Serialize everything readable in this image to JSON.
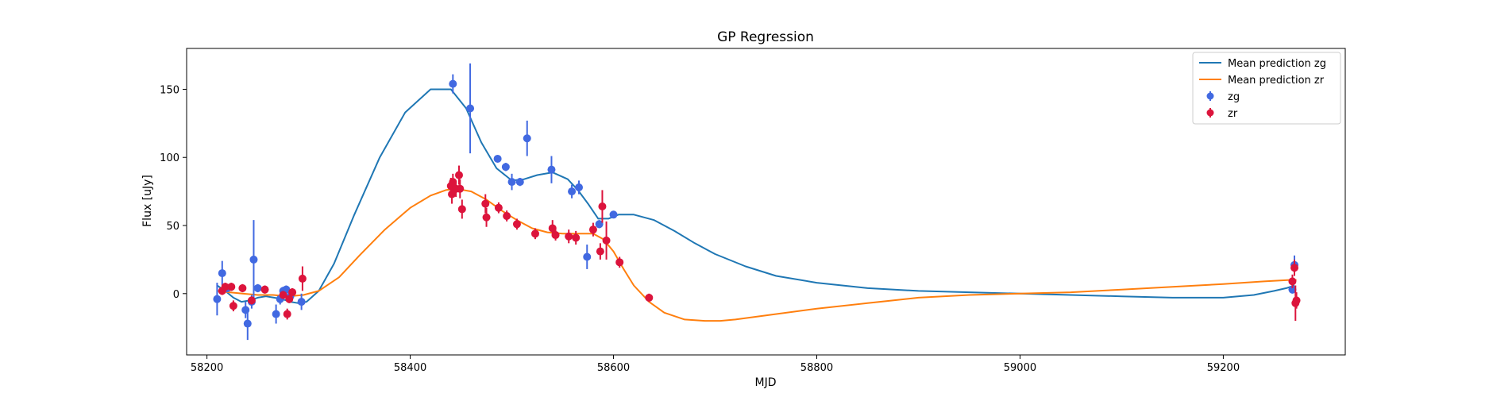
{
  "chart_data": {
    "type": "scatter",
    "title": "GP Regression",
    "xlabel": "MJD",
    "ylabel": "Flux [uJy]",
    "xlim": [
      58180,
      59320
    ],
    "ylim": [
      -45,
      180
    ],
    "xticks": [
      58200,
      58400,
      58600,
      58800,
      59000,
      59200
    ],
    "yticks": [
      0,
      50,
      100,
      150
    ],
    "grid": false,
    "legend_position": "top-right",
    "series": [
      {
        "name": "Mean prediction zg",
        "kind": "line",
        "color": "#1f77b4",
        "x": [
          58210,
          58218,
          58226,
          58234,
          58242,
          58250,
          58258,
          58266,
          58274,
          58282,
          58290,
          58298,
          58310,
          58325,
          58345,
          58370,
          58395,
          58420,
          58440,
          58455,
          58470,
          58485,
          58500,
          58512,
          58525,
          58540,
          58555,
          58565,
          58575,
          58585,
          58595,
          58605,
          58620,
          58640,
          58660,
          58680,
          58700,
          58730,
          58760,
          58800,
          58850,
          58900,
          58950,
          59000,
          59050,
          59100,
          59150,
          59200,
          59230,
          59250,
          59262,
          59270
        ],
        "y": [
          6,
          2,
          -3,
          -6,
          -5,
          -3,
          -2,
          -3,
          -4,
          -6,
          -7,
          -6,
          2,
          22,
          58,
          100,
          133,
          150,
          150,
          136,
          111,
          92,
          83,
          84,
          87,
          89,
          84,
          76,
          66,
          55,
          55,
          58,
          58,
          54,
          46,
          37,
          29,
          20,
          13,
          8,
          4,
          2,
          1,
          0,
          -1,
          -2,
          -3,
          -3,
          -1,
          2,
          4,
          6
        ]
      },
      {
        "name": "Mean prediction zr",
        "kind": "line",
        "color": "#ff7f0e",
        "x": [
          58210,
          58222,
          58235,
          58250,
          58265,
          58280,
          58295,
          58310,
          58330,
          58350,
          58375,
          58400,
          58420,
          58435,
          58445,
          58460,
          58475,
          58490,
          58505,
          58520,
          58535,
          58550,
          58565,
          58580,
          58590,
          58600,
          58610,
          58620,
          58635,
          58650,
          58670,
          58690,
          58705,
          58720,
          58750,
          58800,
          58850,
          58900,
          58950,
          59000,
          59050,
          59100,
          59150,
          59200,
          59240,
          59265,
          59272
        ],
        "y": [
          2,
          1,
          0,
          -1,
          -1,
          -2,
          -1,
          2,
          12,
          28,
          47,
          63,
          72,
          76,
          77,
          75,
          69,
          61,
          54,
          48,
          45,
          44,
          44,
          44,
          40,
          31,
          18,
          6,
          -6,
          -14,
          -19,
          -20,
          -20,
          -19,
          -16,
          -11,
          -7,
          -3,
          -1,
          0,
          1,
          3,
          5,
          7,
          9,
          10,
          10
        ]
      },
      {
        "name": "zg",
        "kind": "errorbar",
        "color": "#4169e1",
        "x": [
          58210,
          58215,
          58220,
          58238,
          58240,
          58244,
          58246,
          58250,
          58268,
          58272,
          58275,
          58278,
          58282,
          58293,
          58442,
          58459,
          58486,
          58494,
          58500,
          58508,
          58515,
          58539,
          58559,
          58566,
          58574,
          58586,
          58600,
          59268,
          59270
        ],
        "y": [
          -4,
          15,
          4,
          -12,
          -22,
          -6,
          25,
          4,
          -15,
          -4,
          2,
          3,
          -2,
          -6,
          154,
          136,
          99,
          93,
          82,
          82,
          114,
          91,
          75,
          78,
          27,
          51,
          58,
          3,
          21
        ],
        "yerr": [
          12,
          9,
          3,
          6,
          12,
          5,
          29,
          3,
          7,
          4,
          3,
          3,
          3,
          6,
          7,
          33,
          2,
          3,
          6,
          3,
          13,
          10,
          5,
          5,
          9,
          3,
          2,
          3,
          7
        ]
      },
      {
        "name": "zr",
        "kind": "errorbar",
        "color": "#dc143c",
        "x": [
          58215,
          58218,
          58224,
          58226,
          58235,
          58244,
          58257,
          58275,
          58279,
          58281,
          58284,
          58294,
          58440,
          58441,
          58442,
          58445,
          58448,
          58449,
          58451,
          58474,
          58475,
          58487,
          58495,
          58505,
          58523,
          58540,
          58543,
          58556,
          58563,
          58580,
          58587,
          58589,
          58593,
          58606,
          58635,
          59268,
          59270,
          59271,
          59272
        ],
        "y": [
          2,
          5,
          5,
          -9,
          4,
          -5,
          3,
          -1,
          -15,
          -4,
          1,
          11,
          79,
          73,
          82,
          77,
          87,
          77,
          62,
          66,
          56,
          63,
          57,
          51,
          44,
          48,
          43,
          42,
          41,
          47,
          31,
          64,
          39,
          23,
          -3,
          9,
          19,
          -7,
          -5
        ],
        "yerr": [
          3,
          3,
          3,
          4,
          3,
          3,
          3,
          3,
          4,
          3,
          3,
          9,
          6,
          7,
          6,
          6,
          7,
          7,
          7,
          7,
          7,
          4,
          4,
          4,
          4,
          6,
          4,
          5,
          5,
          5,
          6,
          12,
          14,
          4,
          3,
          5,
          6,
          13,
          6
        ]
      }
    ]
  }
}
